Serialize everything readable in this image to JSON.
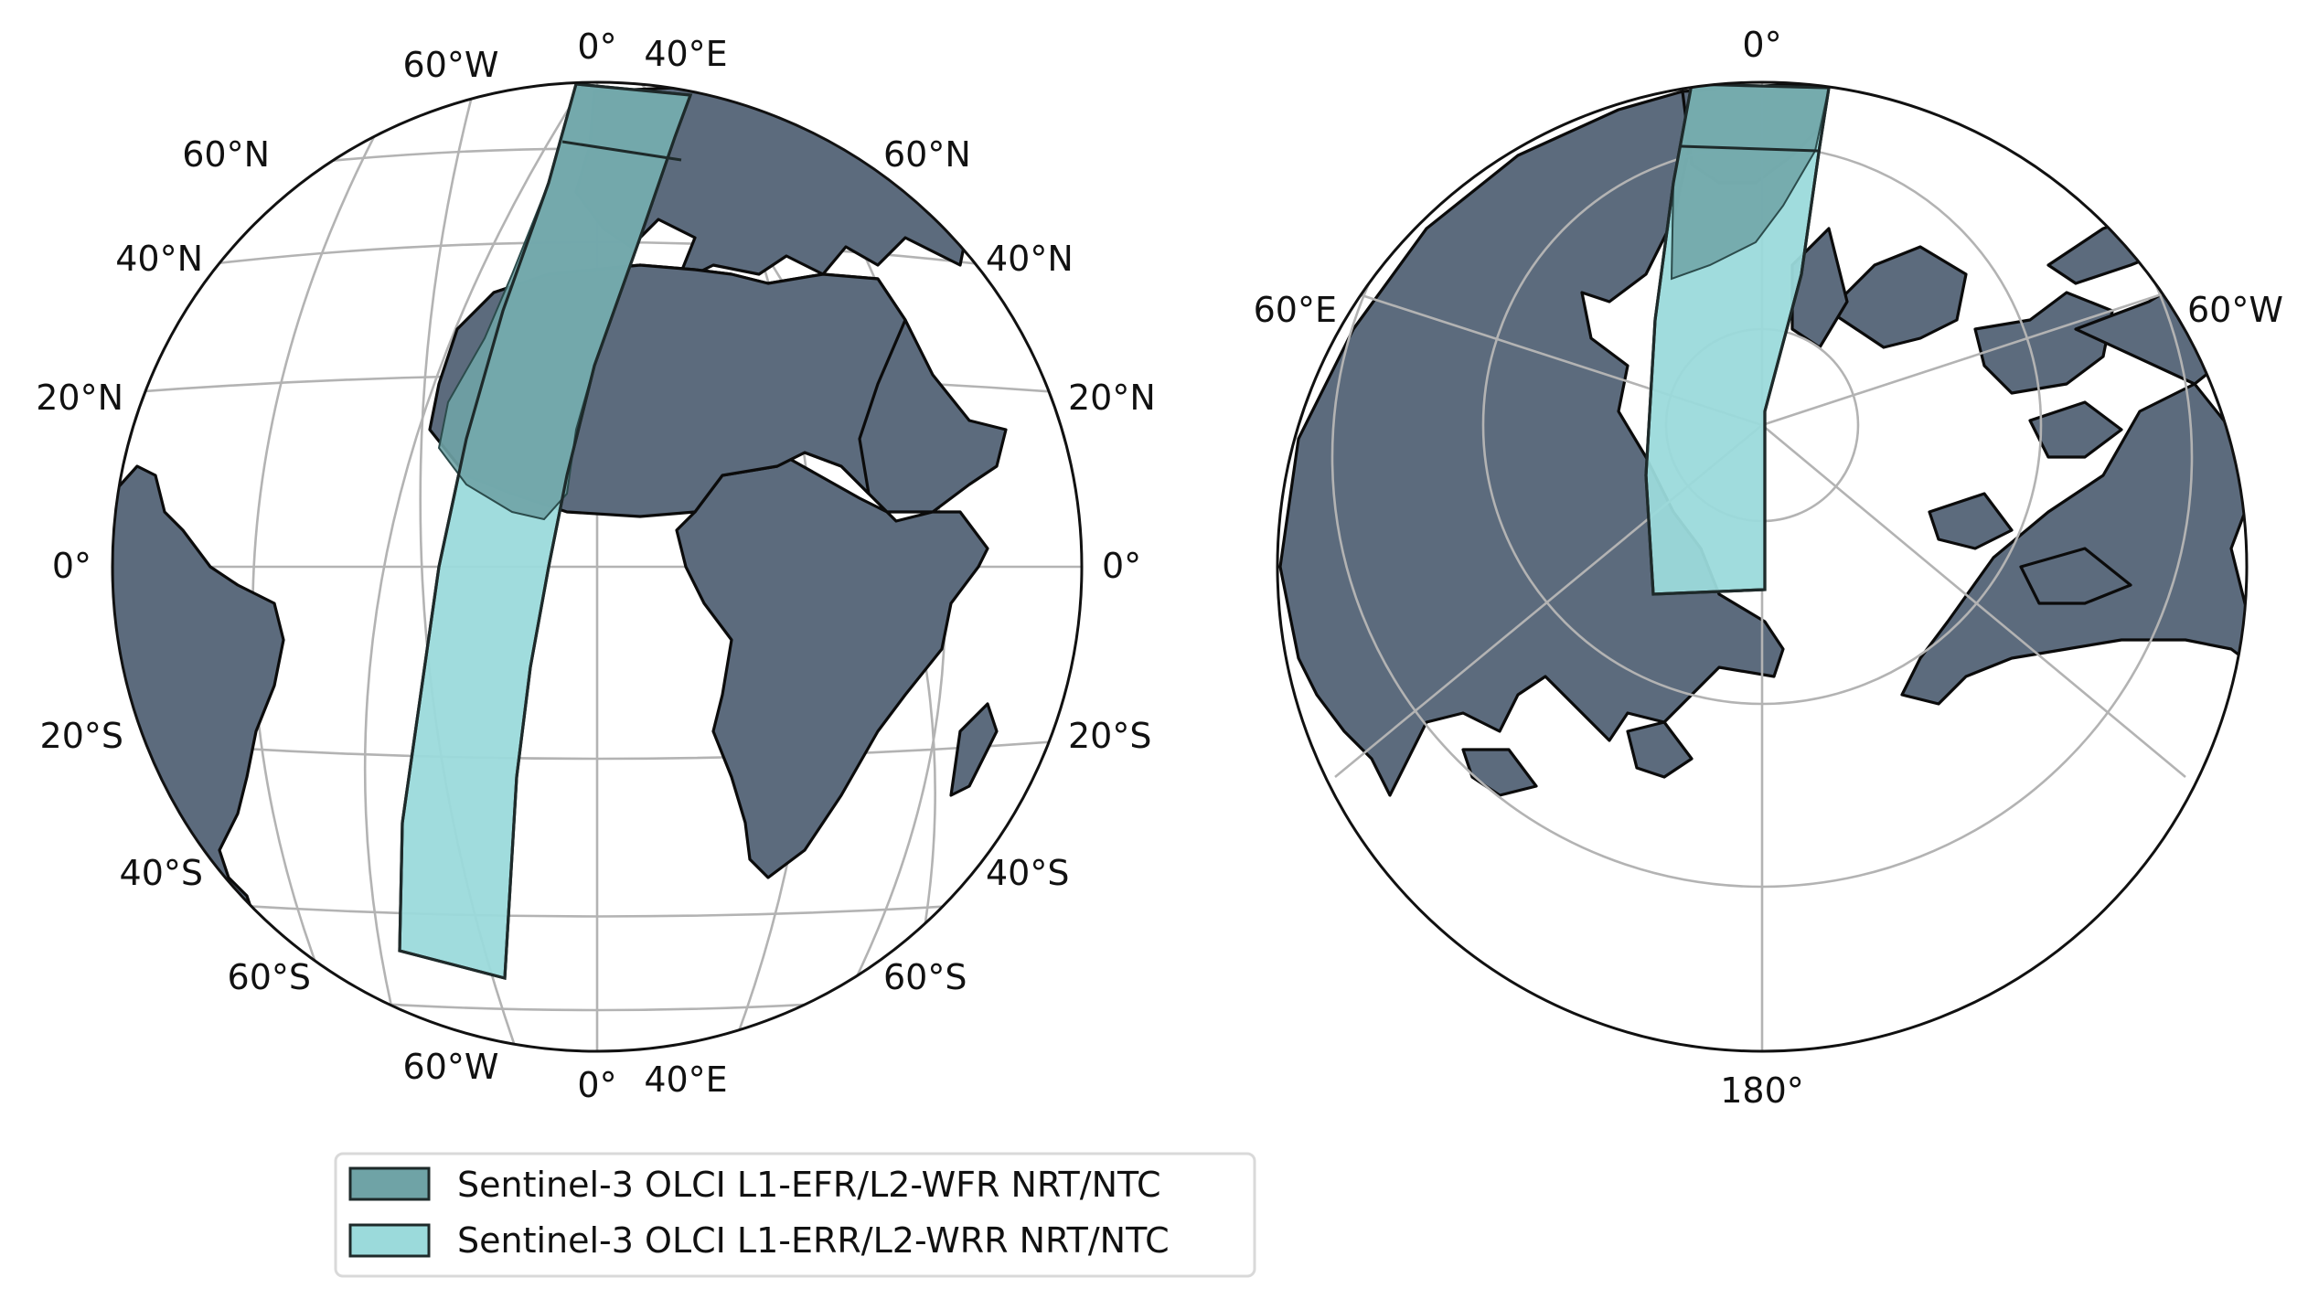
{
  "colors": {
    "efr_fill": "#6fa3a6",
    "err_fill": "#9bdadb",
    "land": "#5c6b7d",
    "graticule": "#b3b3b3"
  },
  "left_map": {
    "lat_labels_left": [
      "60°N",
      "40°N",
      "20°N",
      "0°",
      "20°S",
      "40°S",
      "60°S"
    ],
    "lat_labels_right": [
      "60°N",
      "40°N",
      "20°N",
      "0°",
      "20°S",
      "40°S",
      "60°S"
    ],
    "lon_labels_top": [
      "60°W",
      "0°",
      "40°E"
    ],
    "lon_labels_bottom": [
      "60°W",
      "0°",
      "40°E"
    ]
  },
  "right_map": {
    "lon_labels": [
      "0°",
      "60°E",
      "60°W",
      "180°"
    ]
  },
  "legend": {
    "items": [
      {
        "label": "Sentinel-3 OLCI L1-EFR/L2-WFR NRT/NTC",
        "color": "#6fa3a6"
      },
      {
        "label": "Sentinel-3 OLCI L1-ERR/L2-WRR NRT/NTC",
        "color": "#9bdadb"
      }
    ]
  }
}
